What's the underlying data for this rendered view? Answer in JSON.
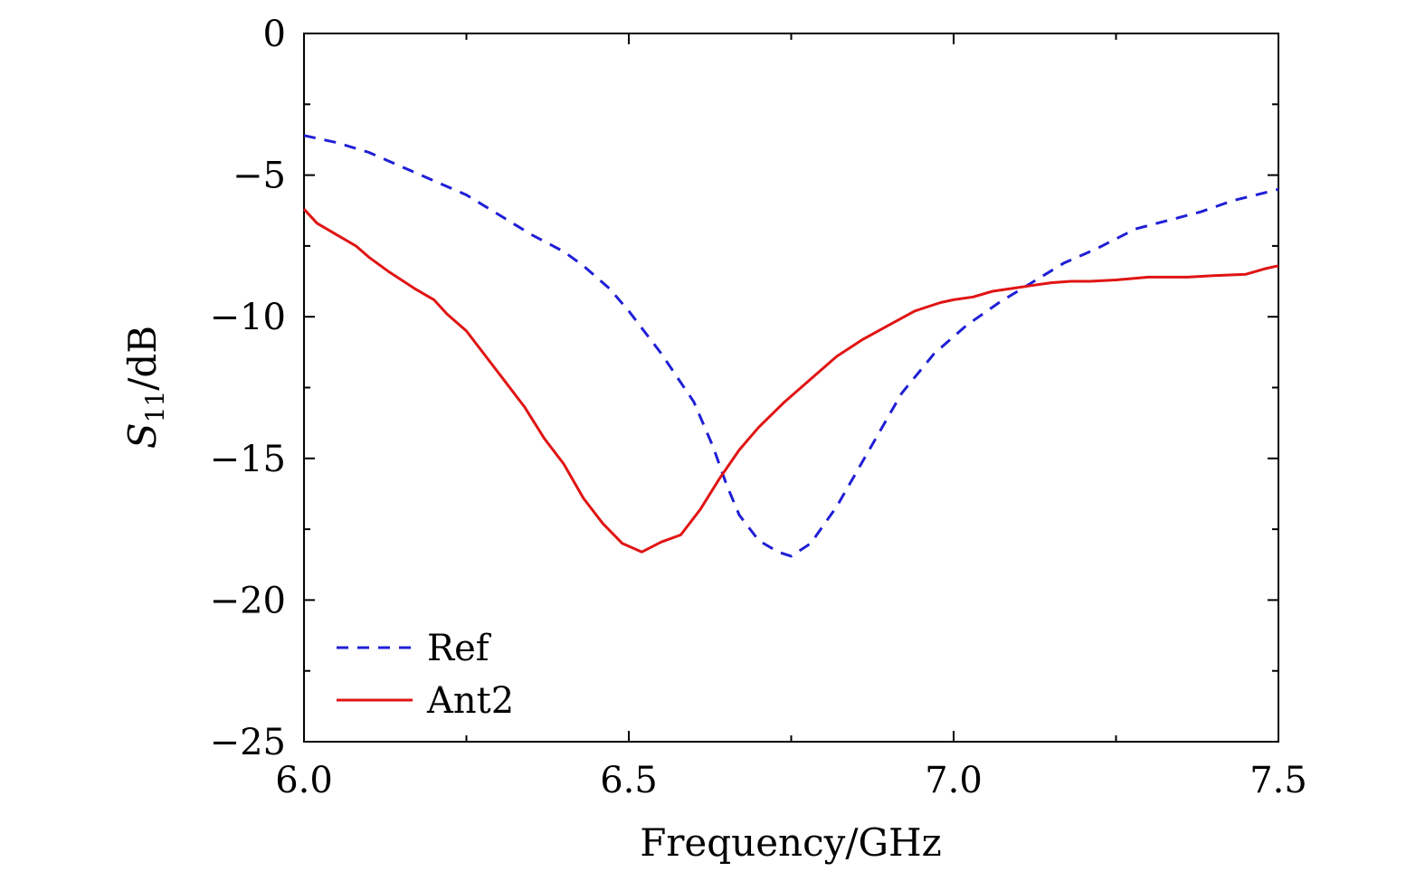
{
  "chart_data": {
    "type": "line",
    "title": "",
    "xlabel": "Frequency/GHz",
    "ylabel": "S11/dB",
    "ylabel_main": "S",
    "ylabel_sub": "11",
    "ylabel_rest": "/dB",
    "xlim": [
      6.0,
      7.5
    ],
    "ylim": [
      -25,
      0
    ],
    "xticks": [
      6.0,
      6.5,
      7.0,
      7.5
    ],
    "xtick_labels": [
      "6.0",
      "6.5",
      "7.0",
      "7.5"
    ],
    "yticks": [
      0,
      -5,
      -10,
      -15,
      -20,
      -25
    ],
    "ytick_labels": [
      "0",
      "−5",
      "−10",
      "−15",
      "−20",
      "−25"
    ],
    "grid": false,
    "legend_position": "bottom-left",
    "series": [
      {
        "name": "Ref",
        "color": "#1f1fd6",
        "dash": true,
        "x": [
          6.0,
          6.05,
          6.1,
          6.15,
          6.2,
          6.25,
          6.3,
          6.35,
          6.4,
          6.43,
          6.47,
          6.5,
          6.55,
          6.6,
          6.63,
          6.65,
          6.67,
          6.7,
          6.73,
          6.75,
          6.78,
          6.82,
          6.87,
          6.92,
          6.97,
          7.02,
          7.07,
          7.12,
          7.17,
          7.22,
          7.28,
          7.33,
          7.38,
          7.43,
          7.5
        ],
        "y": [
          -3.6,
          -3.85,
          -4.2,
          -4.7,
          -5.2,
          -5.7,
          -6.4,
          -7.1,
          -7.7,
          -8.2,
          -9.0,
          -9.8,
          -11.3,
          -13.0,
          -14.6,
          -15.9,
          -17.0,
          -17.9,
          -18.3,
          -18.45,
          -18.0,
          -16.7,
          -14.7,
          -12.7,
          -11.3,
          -10.3,
          -9.5,
          -8.8,
          -8.1,
          -7.6,
          -6.9,
          -6.6,
          -6.3,
          -5.9,
          -5.5
        ]
      },
      {
        "name": "Ant2",
        "color": "#e01414",
        "dash": false,
        "x": [
          6.0,
          6.02,
          6.05,
          6.08,
          6.1,
          6.13,
          6.17,
          6.2,
          6.22,
          6.25,
          6.28,
          6.31,
          6.34,
          6.37,
          6.4,
          6.43,
          6.46,
          6.49,
          6.52,
          6.55,
          6.58,
          6.61,
          6.64,
          6.67,
          6.7,
          6.74,
          6.78,
          6.82,
          6.86,
          6.9,
          6.94,
          6.98,
          7.0,
          7.03,
          7.06,
          7.09,
          7.12,
          7.15,
          7.18,
          7.21,
          7.25,
          7.3,
          7.33,
          7.36,
          7.4,
          7.45,
          7.48,
          7.5
        ],
        "y": [
          -6.2,
          -6.7,
          -7.1,
          -7.5,
          -7.9,
          -8.4,
          -9.0,
          -9.4,
          -9.9,
          -10.5,
          -11.4,
          -12.3,
          -13.2,
          -14.3,
          -15.2,
          -16.4,
          -17.3,
          -18.0,
          -18.3,
          -17.95,
          -17.7,
          -16.8,
          -15.7,
          -14.7,
          -13.9,
          -13.0,
          -12.2,
          -11.4,
          -10.8,
          -10.3,
          -9.8,
          -9.5,
          -9.4,
          -9.3,
          -9.1,
          -9.0,
          -8.9,
          -8.8,
          -8.75,
          -8.75,
          -8.7,
          -8.6,
          -8.6,
          -8.6,
          -8.55,
          -8.5,
          -8.3,
          -8.2
        ]
      }
    ]
  }
}
